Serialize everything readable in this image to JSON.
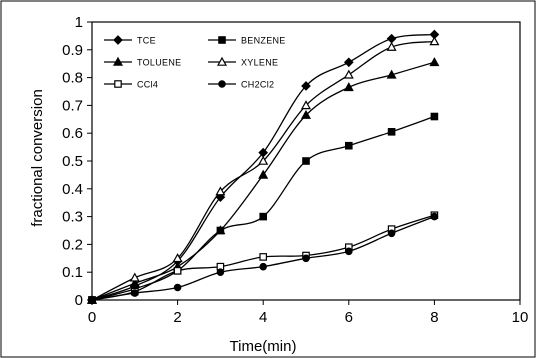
{
  "chart_data": {
    "type": "line",
    "xlabel": "Time(min)",
    "ylabel": "fractional conversion",
    "xlim": [
      0,
      10
    ],
    "ylim": [
      0,
      1
    ],
    "x_ticks": [
      "0",
      "2",
      "4",
      "6",
      "8",
      "10"
    ],
    "y_ticks": [
      "0",
      "0.1",
      "0.2",
      "0.3",
      "0.4",
      "0.5",
      "0.6",
      "0.7",
      "0.8",
      "0.9",
      "1"
    ],
    "grid": false,
    "legend_position": "top-left",
    "series": [
      {
        "name": "TCE",
        "marker": "diamond-filled",
        "x": [
          0,
          1,
          2,
          3,
          4,
          5,
          6,
          7,
          8
        ],
        "y": [
          0,
          0.05,
          0.14,
          0.37,
          0.53,
          0.77,
          0.855,
          0.94,
          0.955
        ]
      },
      {
        "name": "BENZENE",
        "marker": "square-filled",
        "x": [
          0,
          1,
          2,
          3,
          4,
          5,
          6,
          7,
          8
        ],
        "y": [
          0,
          0.04,
          0.105,
          0.25,
          0.3,
          0.5,
          0.555,
          0.605,
          0.66
        ]
      },
      {
        "name": "TOLUENE",
        "marker": "triangle-filled",
        "x": [
          0,
          1,
          2,
          3,
          4,
          5,
          6,
          7,
          8
        ],
        "y": [
          0,
          0.06,
          0.12,
          0.25,
          0.45,
          0.665,
          0.765,
          0.81,
          0.855
        ]
      },
      {
        "name": "XYLENE",
        "marker": "triangle-open",
        "x": [
          0,
          1,
          2,
          3,
          4,
          5,
          6,
          7,
          8
        ],
        "y": [
          0,
          0.08,
          0.15,
          0.39,
          0.5,
          0.7,
          0.81,
          0.91,
          0.93
        ]
      },
      {
        "name": "CCl4",
        "marker": "square-open",
        "x": [
          0,
          1,
          2,
          3,
          4,
          5,
          6,
          7,
          8
        ],
        "y": [
          0,
          0.03,
          0.105,
          0.12,
          0.155,
          0.16,
          0.19,
          0.255,
          0.305
        ]
      },
      {
        "name": "CH2Cl2",
        "marker": "circle-filled",
        "x": [
          0,
          1,
          2,
          3,
          4,
          5,
          6,
          7,
          8
        ],
        "y": [
          0,
          0.025,
          0.045,
          0.1,
          0.12,
          0.15,
          0.175,
          0.24,
          0.3
        ]
      }
    ],
    "colors": {
      "line": "#000000",
      "background": "#ffffff"
    }
  }
}
